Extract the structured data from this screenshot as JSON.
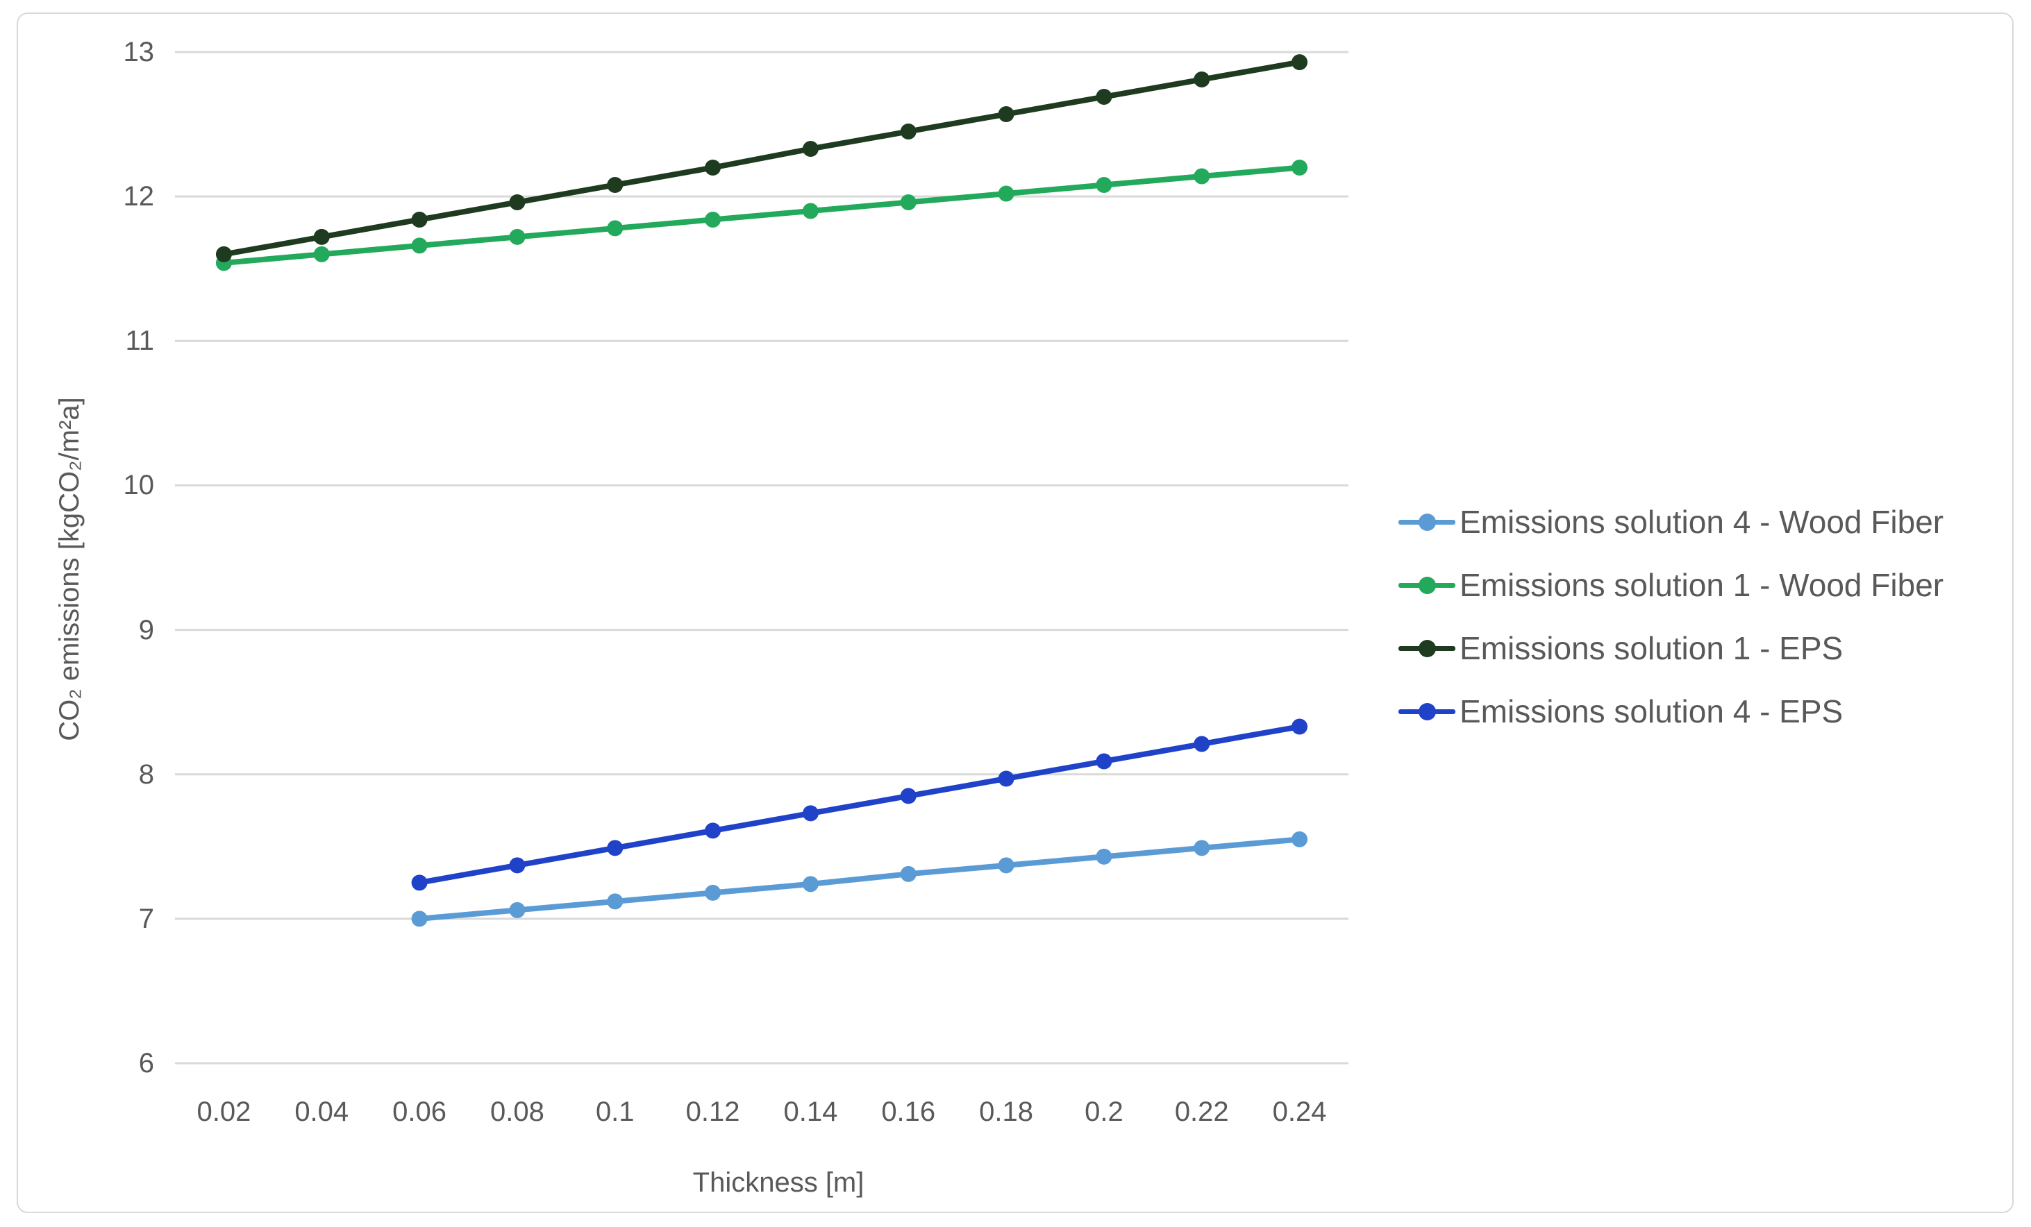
{
  "figure": {
    "type": "line-chart-figure",
    "border_color": "#d9d9d9",
    "background": "#ffffff"
  },
  "chart_data": {
    "type": "line",
    "title": "",
    "xlabel": "Thickness [m]",
    "ylabel": "CO₂ emissions [kgCO₂/m²a]",
    "categories": [
      "0.02",
      "0.04",
      "0.06",
      "0.08",
      "0.1",
      "0.12",
      "0.14",
      "0.16",
      "0.18",
      "0.2",
      "0.22",
      "0.24"
    ],
    "yticks": [
      "6",
      "7",
      "8",
      "9",
      "10",
      "11",
      "12",
      "13"
    ],
    "ylim": [
      6,
      13
    ],
    "grid": "horizontal",
    "gridline_color": "#d9d9d9",
    "text_color": "#595959",
    "legend_position": "right",
    "marker_style": "circle",
    "series": [
      {
        "name": "Emissions solution 4 - Wood Fiber",
        "color": "#5b9bd5",
        "x": [
          0.06,
          0.08,
          0.1,
          0.12,
          0.14,
          0.16,
          0.18,
          0.2,
          0.22,
          0.24
        ],
        "values": [
          7.0,
          7.06,
          7.12,
          7.18,
          7.24,
          7.31,
          7.37,
          7.43,
          7.49,
          7.55
        ]
      },
      {
        "name": "Emissions solution 1 - Wood Fiber",
        "color": "#23a95b",
        "x": [
          0.02,
          0.04,
          0.06,
          0.08,
          0.1,
          0.12,
          0.14,
          0.16,
          0.18,
          0.2,
          0.22,
          0.24
        ],
        "values": [
          11.54,
          11.6,
          11.66,
          11.72,
          11.78,
          11.84,
          11.9,
          11.96,
          12.02,
          12.08,
          12.14,
          12.2
        ]
      },
      {
        "name": "Emissions solution 1 - EPS",
        "color": "#1e3b20",
        "x": [
          0.02,
          0.04,
          0.06,
          0.08,
          0.1,
          0.12,
          0.14,
          0.16,
          0.18,
          0.2,
          0.22,
          0.24
        ],
        "values": [
          11.6,
          11.72,
          11.84,
          11.96,
          12.08,
          12.2,
          12.33,
          12.45,
          12.57,
          12.69,
          12.81,
          12.93
        ]
      },
      {
        "name": "Emissions solution 4 - EPS",
        "color": "#2042c8",
        "x": [
          0.06,
          0.08,
          0.1,
          0.12,
          0.14,
          0.16,
          0.18,
          0.2,
          0.22,
          0.24
        ],
        "values": [
          7.25,
          7.37,
          7.49,
          7.61,
          7.73,
          7.85,
          7.97,
          8.09,
          8.21,
          8.33
        ]
      }
    ]
  }
}
